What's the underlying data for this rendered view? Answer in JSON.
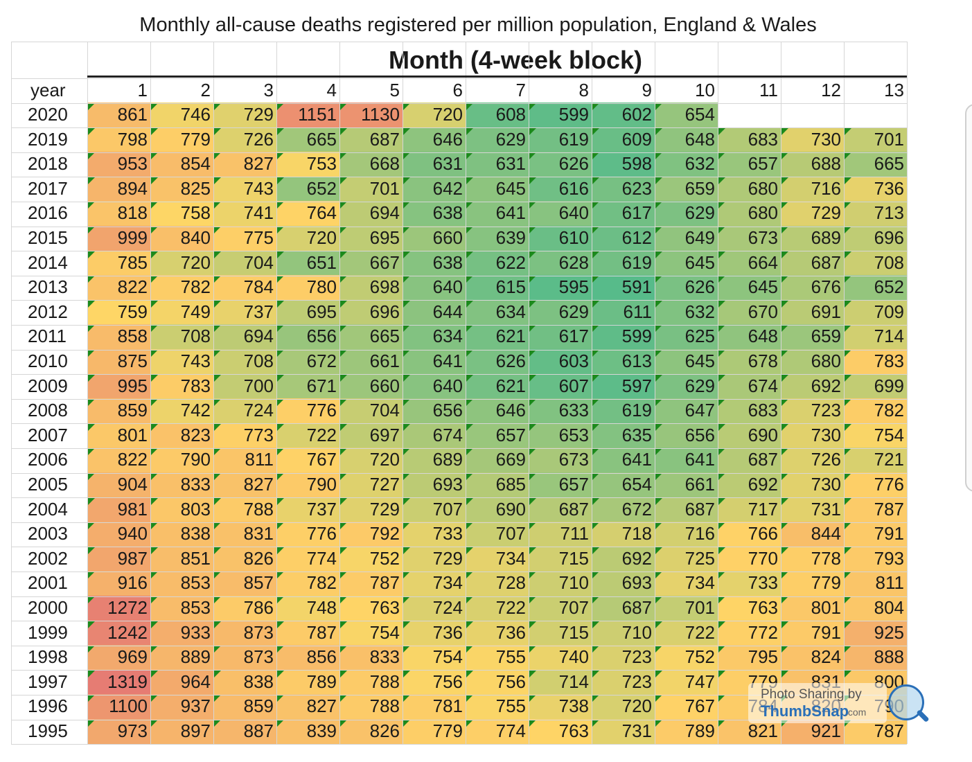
{
  "chart_data": {
    "type": "table",
    "title": "Monthly all-cause deaths registered per million population, England & Wales",
    "subtitle": "Month (4-week block)",
    "row_header": "year",
    "columns": [
      "1",
      "2",
      "3",
      "4",
      "5",
      "6",
      "7",
      "8",
      "9",
      "10",
      "11",
      "12",
      "13"
    ],
    "rows": [
      {
        "year": "2020",
        "values": [
          861,
          746,
          729,
          1151,
          1130,
          720,
          608,
          599,
          602,
          654,
          null,
          null,
          null
        ]
      },
      {
        "year": "2019",
        "values": [
          798,
          779,
          726,
          665,
          687,
          646,
          629,
          619,
          609,
          648,
          683,
          730,
          701
        ]
      },
      {
        "year": "2018",
        "values": [
          953,
          854,
          827,
          753,
          668,
          631,
          631,
          626,
          598,
          632,
          657,
          688,
          665
        ]
      },
      {
        "year": "2017",
        "values": [
          894,
          825,
          743,
          652,
          701,
          642,
          645,
          616,
          623,
          659,
          680,
          716,
          736
        ]
      },
      {
        "year": "2016",
        "values": [
          818,
          758,
          741,
          764,
          694,
          638,
          641,
          640,
          617,
          629,
          680,
          729,
          713
        ]
      },
      {
        "year": "2015",
        "values": [
          999,
          840,
          775,
          720,
          695,
          660,
          639,
          610,
          612,
          649,
          673,
          689,
          696
        ]
      },
      {
        "year": "2014",
        "values": [
          785,
          720,
          704,
          651,
          667,
          638,
          622,
          628,
          619,
          645,
          664,
          687,
          708
        ]
      },
      {
        "year": "2013",
        "values": [
          822,
          782,
          784,
          780,
          698,
          640,
          615,
          595,
          591,
          626,
          645,
          676,
          652
        ]
      },
      {
        "year": "2012",
        "values": [
          759,
          749,
          737,
          695,
          696,
          644,
          634,
          629,
          611,
          632,
          670,
          691,
          709
        ]
      },
      {
        "year": "2011",
        "values": [
          858,
          708,
          694,
          656,
          665,
          634,
          621,
          617,
          599,
          625,
          648,
          659,
          714
        ]
      },
      {
        "year": "2010",
        "values": [
          875,
          743,
          708,
          672,
          661,
          641,
          626,
          603,
          613,
          645,
          678,
          680,
          783
        ]
      },
      {
        "year": "2009",
        "values": [
          995,
          783,
          700,
          671,
          660,
          640,
          621,
          607,
          597,
          629,
          674,
          692,
          699
        ]
      },
      {
        "year": "2008",
        "values": [
          859,
          742,
          724,
          776,
          704,
          656,
          646,
          633,
          619,
          647,
          683,
          723,
          782
        ]
      },
      {
        "year": "2007",
        "values": [
          801,
          823,
          773,
          722,
          697,
          674,
          657,
          653,
          635,
          656,
          690,
          730,
          754
        ]
      },
      {
        "year": "2006",
        "values": [
          822,
          790,
          811,
          767,
          720,
          689,
          669,
          673,
          641,
          641,
          687,
          726,
          721
        ]
      },
      {
        "year": "2005",
        "values": [
          904,
          833,
          827,
          790,
          727,
          693,
          685,
          657,
          654,
          661,
          692,
          730,
          776
        ]
      },
      {
        "year": "2004",
        "values": [
          981,
          803,
          788,
          737,
          729,
          707,
          690,
          687,
          672,
          687,
          717,
          731,
          787
        ]
      },
      {
        "year": "2003",
        "values": [
          940,
          838,
          831,
          776,
          792,
          733,
          707,
          711,
          718,
          716,
          766,
          844,
          791
        ]
      },
      {
        "year": "2002",
        "values": [
          987,
          851,
          826,
          774,
          752,
          729,
          734,
          715,
          692,
          725,
          770,
          778,
          793
        ]
      },
      {
        "year": "2001",
        "values": [
          916,
          853,
          857,
          782,
          787,
          734,
          728,
          710,
          693,
          734,
          733,
          779,
          811
        ]
      },
      {
        "year": "2000",
        "values": [
          1272,
          853,
          786,
          748,
          763,
          724,
          722,
          707,
          687,
          701,
          763,
          801,
          804
        ]
      },
      {
        "year": "1999",
        "values": [
          1242,
          933,
          873,
          787,
          754,
          736,
          736,
          715,
          710,
          722,
          772,
          791,
          925
        ]
      },
      {
        "year": "1998",
        "values": [
          969,
          889,
          873,
          856,
          833,
          754,
          755,
          740,
          723,
          752,
          795,
          824,
          888
        ]
      },
      {
        "year": "1997",
        "values": [
          1319,
          964,
          838,
          789,
          788,
          756,
          756,
          714,
          723,
          747,
          779,
          831,
          800
        ]
      },
      {
        "year": "1996",
        "values": [
          1100,
          937,
          859,
          827,
          788,
          781,
          755,
          738,
          720,
          767,
          784,
          820,
          790
        ]
      },
      {
        "year": "1995",
        "values": [
          973,
          897,
          887,
          839,
          826,
          779,
          774,
          763,
          731,
          789,
          821,
          921,
          787
        ]
      }
    ],
    "color_scale": {
      "low": "#57bb8a",
      "mid": "#ffd666",
      "high": "#e67c73"
    }
  },
  "watermark": {
    "line1": "Photo Sharing by",
    "line2": "ThumbSnap",
    "line3": ".com"
  }
}
